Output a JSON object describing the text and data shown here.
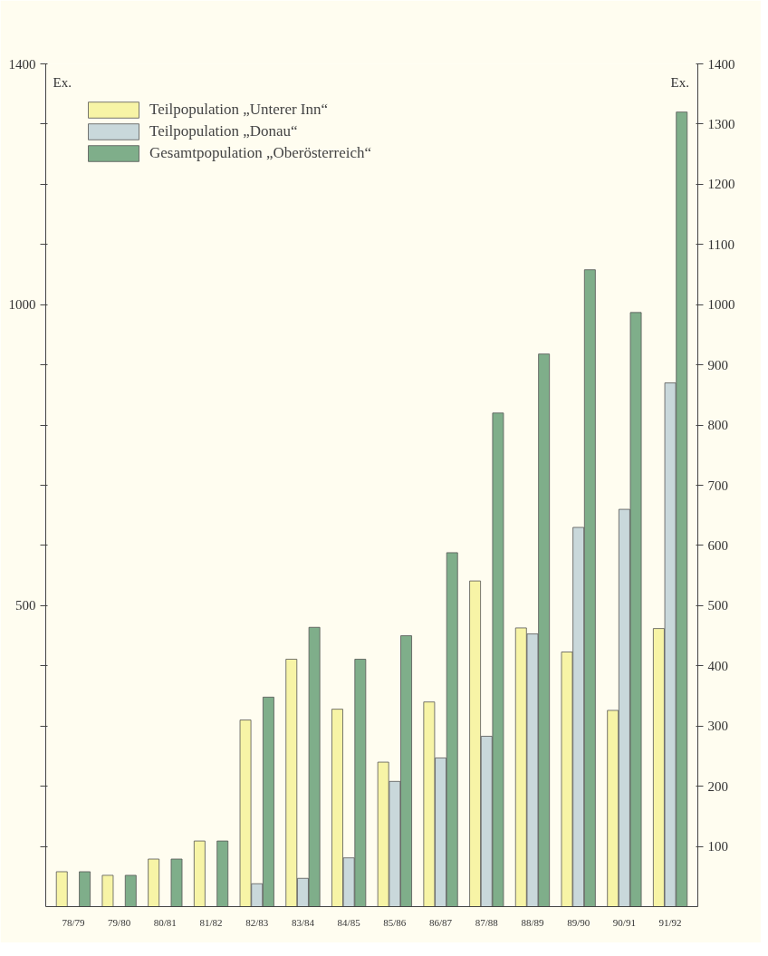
{
  "chart_data": {
    "type": "bar",
    "categories": [
      "78/79",
      "79/80",
      "80/81",
      "81/82",
      "82/83",
      "83/84",
      "84/85",
      "85/86",
      "86/87",
      "87/88",
      "88/89",
      "89/90",
      "90/91",
      "91/92"
    ],
    "series": [
      {
        "name": "Teilpopulation „Unterer Inn“",
        "color": "#f7f4a6",
        "values": [
          58,
          52,
          79,
          109,
          310,
          411,
          328,
          240,
          340,
          541,
          463,
          423,
          326,
          462
        ]
      },
      {
        "name": "Teilpopulation „Donau“",
        "color": "#c9d8db",
        "values": [
          null,
          null,
          null,
          null,
          38,
          47,
          81,
          208,
          247,
          283,
          453,
          630,
          660,
          870
        ]
      },
      {
        "name": "Gesamtpopulation „Oberösterreich“",
        "color": "#7fae8a",
        "values": [
          58,
          52,
          79,
          109,
          348,
          464,
          411,
          450,
          588,
          820,
          918,
          1058,
          987,
          1320
        ]
      }
    ],
    "ylabel": "Ex.",
    "y2label": "Ex.",
    "ylim": [
      0,
      1400
    ],
    "yticks": [
      {
        "value": 100,
        "label": null
      },
      {
        "value": 200,
        "label": null
      },
      {
        "value": 300,
        "label": null
      },
      {
        "value": 400,
        "label": null
      },
      500,
      {
        "value": 600,
        "label": null
      },
      {
        "value": 700,
        "label": null
      },
      {
        "value": 800,
        "label": null
      },
      {
        "value": 900,
        "label": null
      },
      1000,
      {
        "value": 1100,
        "label": null
      },
      {
        "value": 1200,
        "label": null
      },
      {
        "value": 1300,
        "label": null
      },
      1400
    ],
    "y2lim": [
      0,
      1400
    ],
    "y2ticks": [
      100,
      200,
      300,
      400,
      500,
      600,
      700,
      800,
      900,
      1000,
      1100,
      1200,
      1300,
      1400
    ],
    "grid": false,
    "legend": "top left"
  }
}
